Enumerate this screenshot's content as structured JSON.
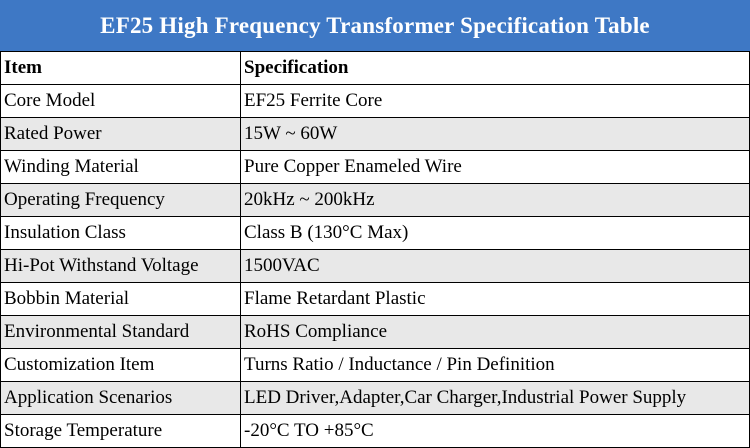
{
  "title": "EF25 High Frequency Transformer Specification Table",
  "table": {
    "headers": [
      "Item",
      "Specification"
    ],
    "rows": [
      [
        "Core Model",
        "EF25 Ferrite Core"
      ],
      [
        "Rated Power",
        "15W ~ 60W"
      ],
      [
        "Winding Material",
        "Pure Copper Enameled Wire"
      ],
      [
        "Operating Frequency",
        "20kHz ~ 200kHz"
      ],
      [
        "Insulation Class",
        "Class B (130°C Max)"
      ],
      [
        "Hi-Pot Withstand Voltage",
        "1500VAC"
      ],
      [
        "Bobbin Material",
        "Flame Retardant Plastic"
      ],
      [
        "Environmental Standard",
        "RoHS Compliance"
      ],
      [
        "Customization Item",
        "Turns Ratio / Inductance / Pin Definition"
      ],
      [
        "Application Scenarios",
        "LED Driver,Adapter,Car Charger,Industrial Power Supply"
      ],
      [
        "Storage Temperature",
        "-20°C TO +85°C"
      ]
    ]
  },
  "colors": {
    "title_background": "#3e78c5",
    "title_text": "#ffffff",
    "row_alt_background": "#e8e8e8",
    "border": "#000000"
  }
}
